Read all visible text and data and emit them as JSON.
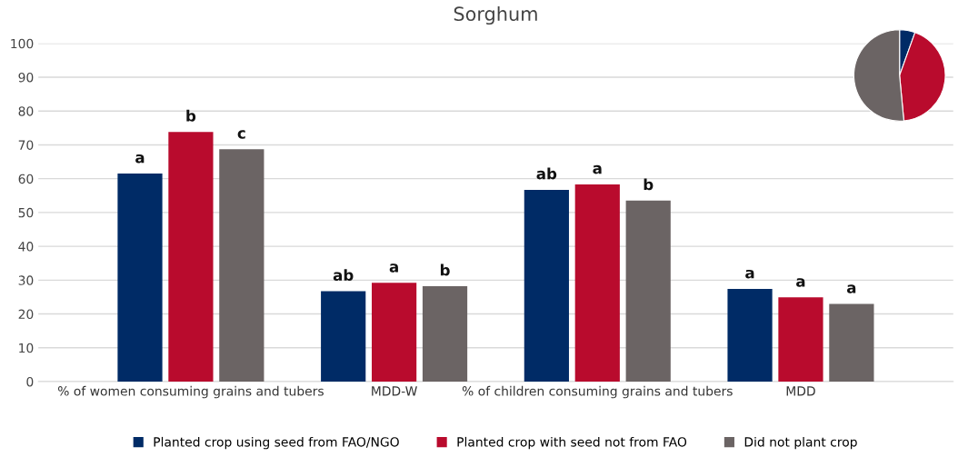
{
  "chart_data": [
    {
      "type": "bar",
      "title": "Sorghum",
      "categories": [
        "% of women consuming grains and tubers",
        "MDD-W",
        "% of children consuming grains and tubers",
        "MDD"
      ],
      "series": [
        {
          "name": "Planted crop using seed from FAO/NGO",
          "color": "#002b66",
          "values": [
            61.5,
            26.7,
            56.7,
            27.4
          ],
          "value_labels": [
            "a",
            "ab",
            "ab",
            "a"
          ]
        },
        {
          "name": "Planted crop with seed not from FAO",
          "color": "#b90b2d",
          "values": [
            73.8,
            29.2,
            58.3,
            24.9
          ],
          "value_labels": [
            "b",
            "a",
            "a",
            "a"
          ]
        },
        {
          "name": "Did not plant crop",
          "color": "#6b6464",
          "values": [
            68.7,
            28.2,
            53.5,
            23.0
          ],
          "value_labels": [
            "c",
            "b",
            "b",
            "a"
          ]
        }
      ],
      "ylim": [
        0,
        100
      ],
      "yticks": [
        0,
        10,
        20,
        30,
        40,
        50,
        60,
        70,
        80,
        90,
        100
      ],
      "grid": "y",
      "legend": "bottom"
    },
    {
      "type": "pie",
      "categories": [
        null,
        null,
        null
      ],
      "values": [
        5.5,
        43,
        51.5
      ],
      "colors": [
        "#002b66",
        "#b90b2d",
        "#6b6464"
      ]
    }
  ]
}
